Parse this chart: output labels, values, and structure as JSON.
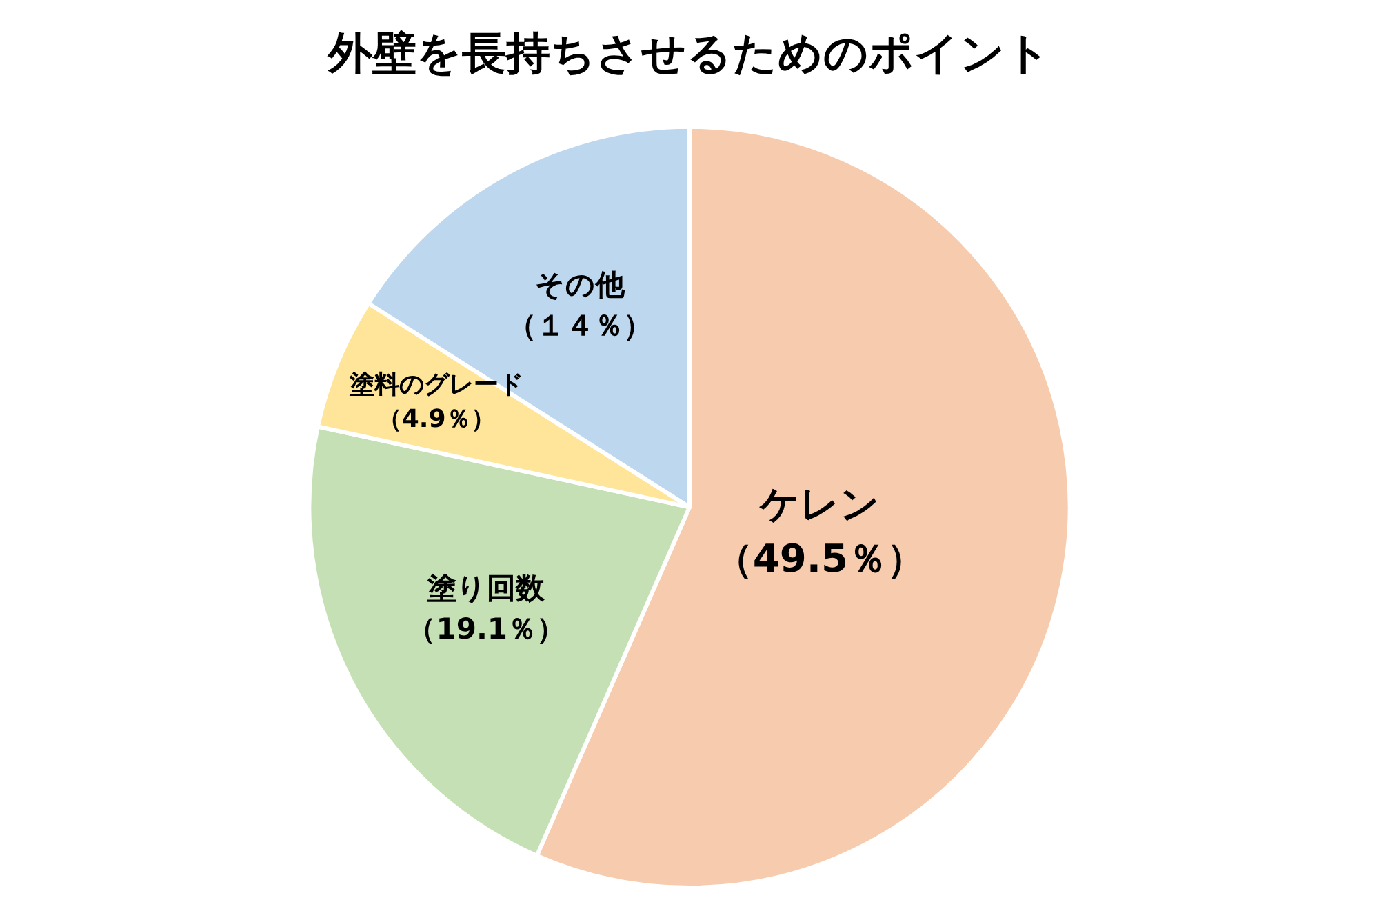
{
  "chart_data": {
    "type": "pie",
    "title": "外壁を長持ちさせるためのポイント",
    "categories": [
      "ケレン",
      "塗り回数",
      "塗料のグレード",
      "その他"
    ],
    "values": [
      49.5,
      19.1,
      4.9,
      14
    ],
    "colors": [
      "#f7cbad",
      "#c5e0b4",
      "#fee599",
      "#bdd7ee"
    ],
    "value_labels": [
      "（49.5％）",
      "（19.1％）",
      "（4.9％）",
      "（１４％）"
    ],
    "legend": false
  }
}
